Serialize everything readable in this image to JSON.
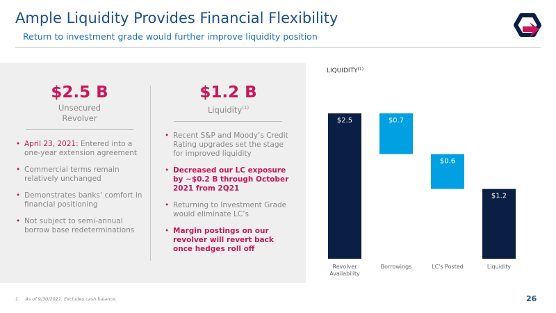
{
  "header": {
    "title": "Ample Liquidity Provides Financial Flexibility",
    "subtitle": "Return to investment grade would further improve liquidity position"
  },
  "panel": {
    "columns": [
      {
        "figure": "$2.5 B",
        "label": "Unsecured Revolver",
        "label_note": null,
        "bullets": [
          [
            {
              "text": "April 23, 2021:",
              "style": "accent"
            },
            {
              "text": " Entered into a one-year extension agreement",
              "style": "plain"
            }
          ],
          [
            {
              "text": "Commercial terms remain relatively unchanged",
              "style": "plain"
            }
          ],
          [
            {
              "text": "Demonstrates banks’ comfort in financial positioning",
              "style": "plain"
            }
          ],
          [
            {
              "text": "Not subject to semi-annual borrow base redeterminations",
              "style": "plain"
            }
          ]
        ]
      },
      {
        "figure": "$1.2 B",
        "label": "Liquidity",
        "label_note": "(1)",
        "bullets": [
          [
            {
              "text": "Recent S&P and Moody’s Credit Rating upgrades set the stage for improved liquidity",
              "style": "plain"
            }
          ],
          [
            {
              "text": "Decreased our LC exposure by ~$0.2 B through October 2021 from 2Q21",
              "style": "strong-accent"
            }
          ],
          [
            {
              "text": "Returning to Investment Grade would eliminate LC’s",
              "style": "plain"
            }
          ],
          [
            {
              "text": "Margin postings on our revolver will revert back once hedges roll off",
              "style": "strong-accent"
            }
          ]
        ]
      }
    ]
  },
  "chart_data": {
    "type": "waterfall",
    "title": "LIQUIDITY",
    "title_note": "(1)",
    "categories": [
      "Revolver Availability",
      "Borrowings",
      "LC's Posted",
      "Liquidity"
    ],
    "values": [
      2.5,
      0.7,
      0.6,
      1.2
    ],
    "value_labels": [
      "$2.5",
      "$0.7",
      "$0.6",
      "$1.2"
    ],
    "measure": [
      "absolute",
      "decrease",
      "decrease",
      "total"
    ],
    "colors": {
      "total": "#0b1f45",
      "decrease": "#00a0e3"
    }
  },
  "footer": {
    "note_marker": "1.",
    "note": "As of 9/30/2021. Excludes cash balance.",
    "page": "26"
  }
}
